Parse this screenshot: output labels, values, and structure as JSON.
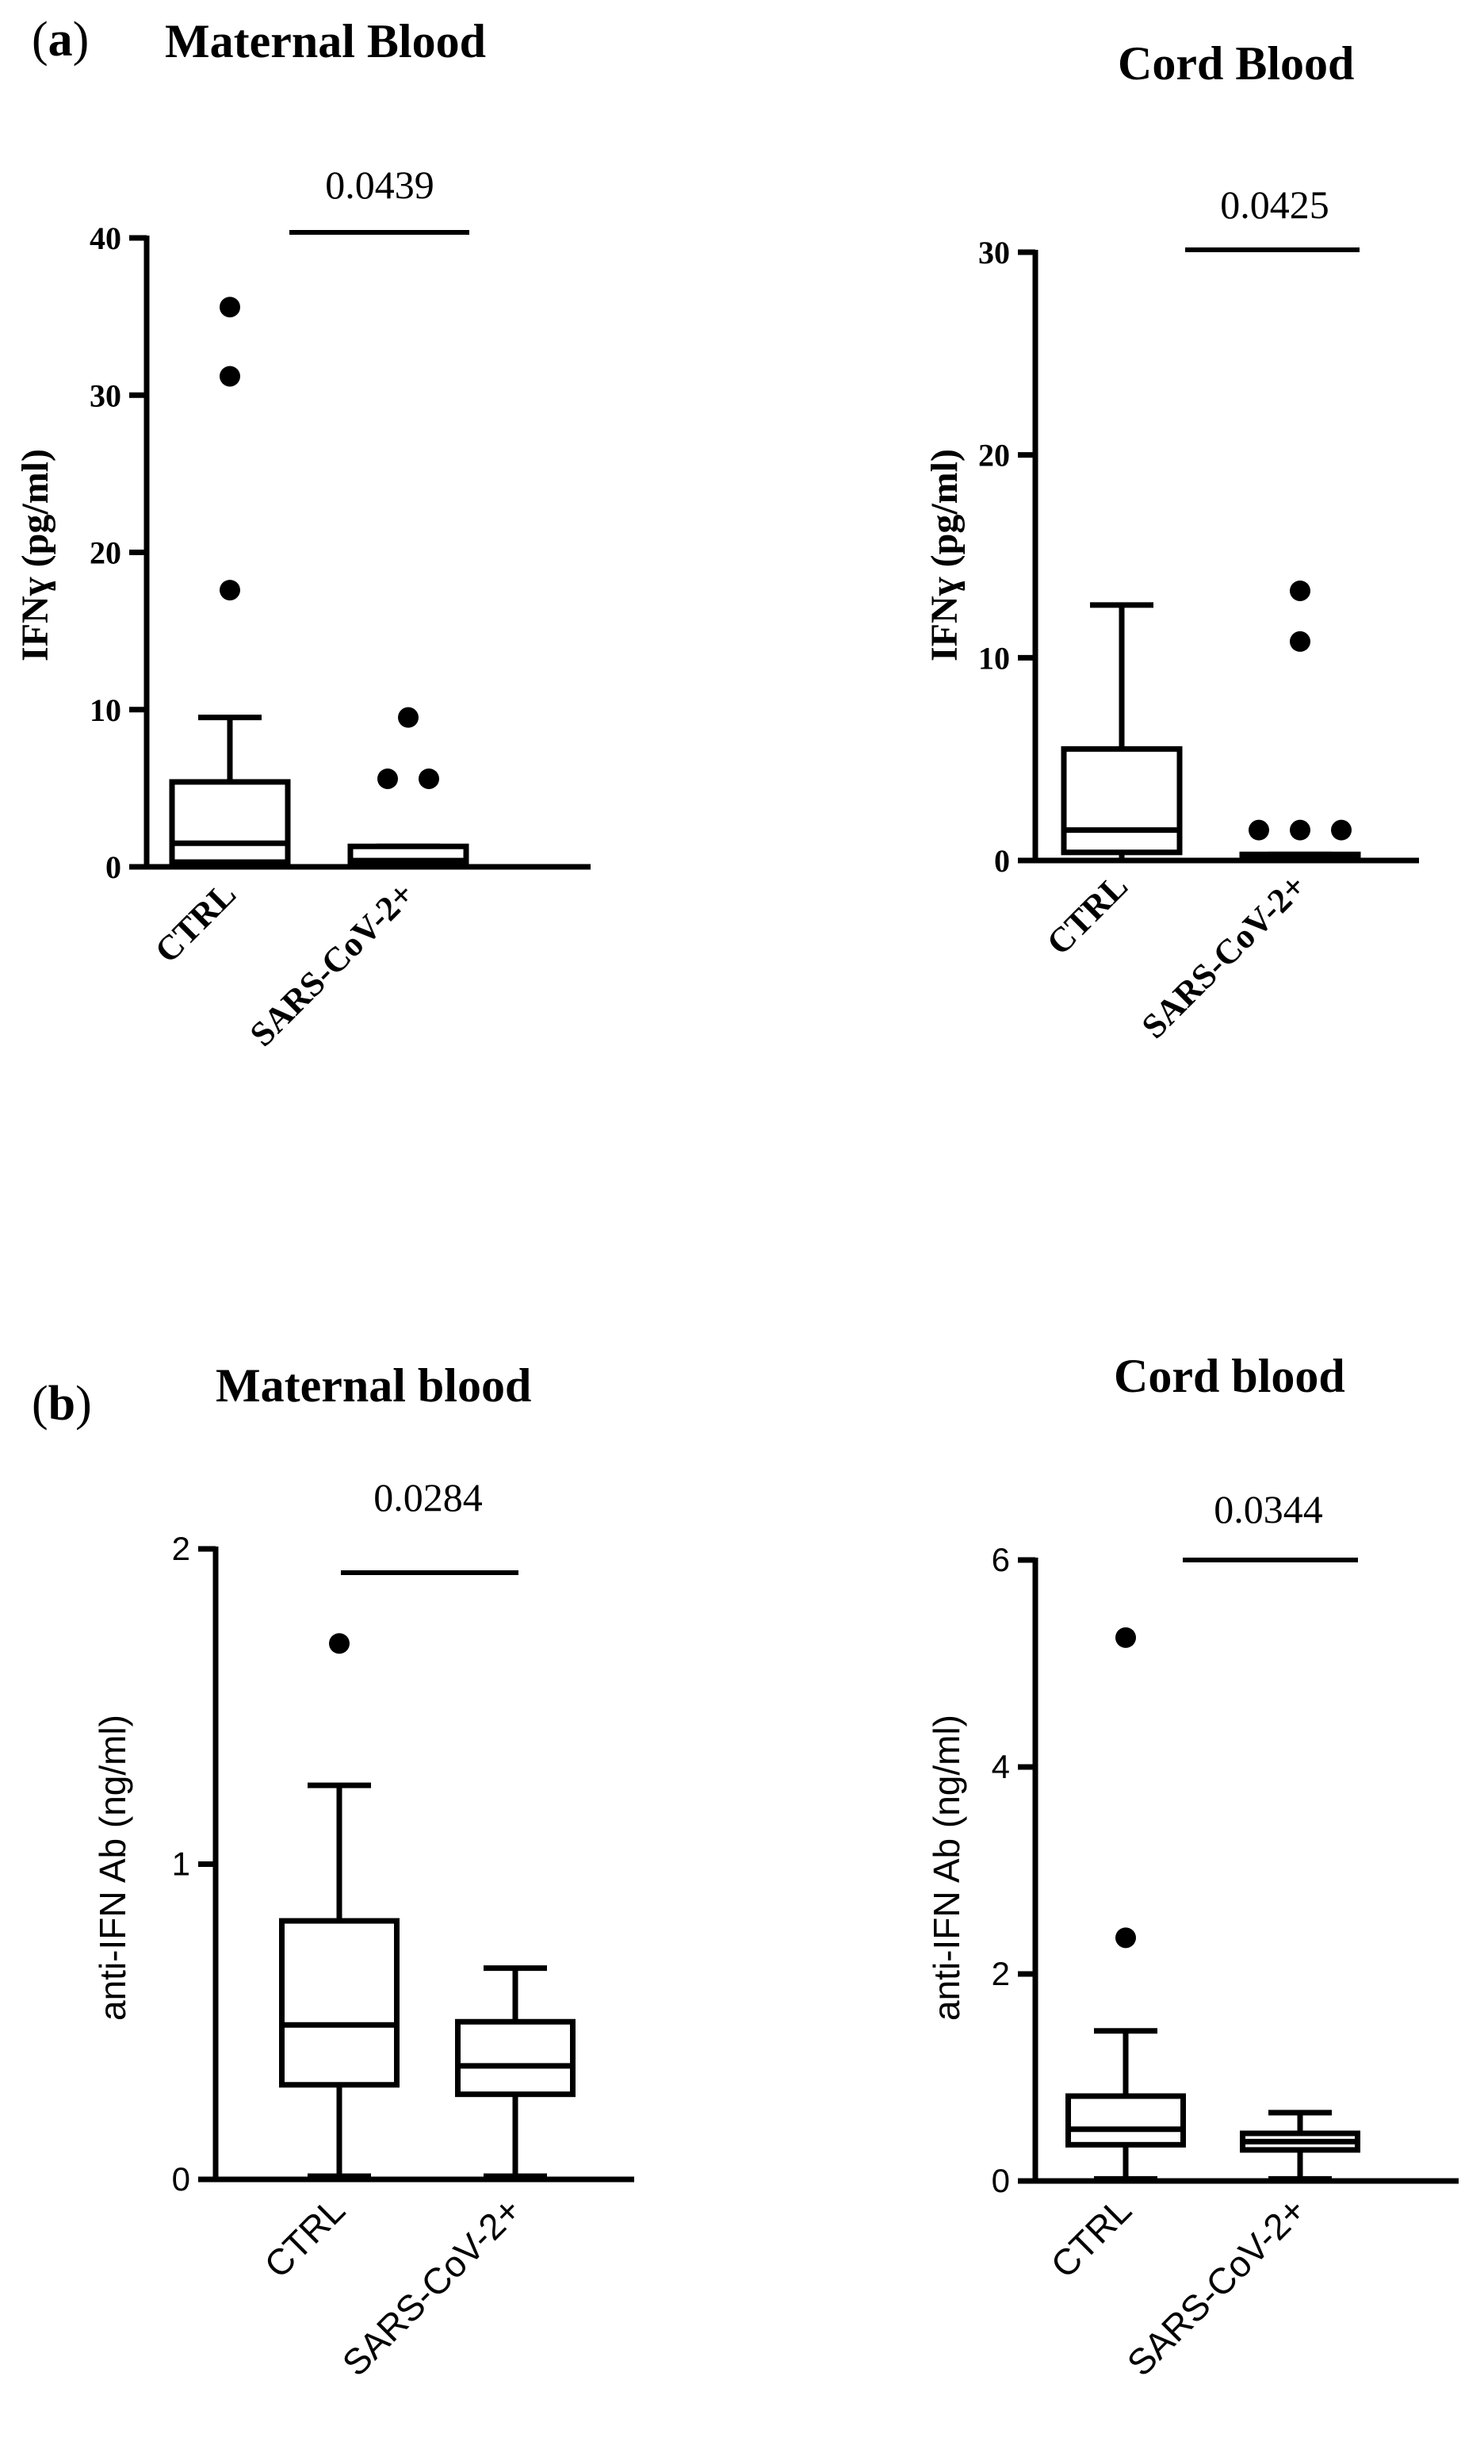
{
  "figure": {
    "panel_a": {
      "letter_open": "(",
      "letter": "a",
      "letter_close": ")"
    },
    "panel_b": {
      "letter_open": "(",
      "letter": "b",
      "letter_close": ")"
    }
  },
  "chart_data": [
    {
      "type": "box",
      "panel": "a",
      "title": "Maternal Blood",
      "ylabel": "IFNɣ (pg/ml)",
      "ylim": [
        0,
        40
      ],
      "yticks": [
        0,
        10,
        20,
        30,
        40
      ],
      "categories": [
        "CTRL",
        "SARS-CoV-2+"
      ],
      "p_value": "0.0439",
      "boxes": [
        {
          "name": "CTRL",
          "whisker_low": 0,
          "q1": 0.3,
          "median": 1.5,
          "q3": 5.4,
          "whisker_high": 9.5,
          "outliers": [
            17.6,
            31.2,
            35.6
          ]
        },
        {
          "name": "SARS-CoV-2+",
          "whisker_low": 0,
          "q1": 0.1,
          "median": 0.4,
          "q3": 1.3,
          "whisker_high": 1.3,
          "outliers": [
            5.6,
            5.6,
            9.5
          ]
        }
      ]
    },
    {
      "type": "box",
      "panel": "a",
      "title": "Cord Blood",
      "ylabel": "IFNɣ (pg/ml)",
      "ylim": [
        0,
        30
      ],
      "yticks": [
        0,
        10,
        20,
        30
      ],
      "categories": [
        "CTRL",
        "SARS-CoV-2+"
      ],
      "p_value": "0.0425",
      "boxes": [
        {
          "name": "CTRL",
          "whisker_low": 0,
          "q1": 0.4,
          "median": 1.5,
          "q3": 5.5,
          "whisker_high": 12.6,
          "outliers": []
        },
        {
          "name": "SARS-CoV-2+",
          "whisker_low": 0,
          "q1": 0.1,
          "median": 0.2,
          "q3": 0.3,
          "whisker_high": 0.3,
          "outliers": [
            1.5,
            1.5,
            1.5,
            10.8,
            13.3
          ]
        }
      ]
    },
    {
      "type": "box",
      "panel": "b",
      "title": "Maternal blood",
      "ylabel": "anti-IFN Ab  (ng/ml)",
      "ylim": [
        0,
        2
      ],
      "yticks": [
        0,
        1,
        2
      ],
      "categories": [
        "CTRL",
        "SARS-CoV-2+"
      ],
      "p_value": "0.0284",
      "boxes": [
        {
          "name": "CTRL",
          "whisker_low": 0.01,
          "q1": 0.3,
          "median": 0.49,
          "q3": 0.82,
          "whisker_high": 1.25,
          "outliers": [
            1.7
          ]
        },
        {
          "name": "SARS-CoV-2+",
          "whisker_low": 0.01,
          "q1": 0.27,
          "median": 0.36,
          "q3": 0.5,
          "whisker_high": 0.67,
          "outliers": []
        }
      ]
    },
    {
      "type": "box",
      "panel": "b",
      "title": "Cord blood",
      "ylabel": "anti-IFN Ab  (ng/ml)",
      "ylim": [
        0,
        6
      ],
      "yticks": [
        0,
        2,
        4,
        6
      ],
      "categories": [
        "CTRL",
        "SARS-CoV-2+"
      ],
      "p_value": "0.0344",
      "boxes": [
        {
          "name": "CTRL",
          "whisker_low": 0.02,
          "q1": 0.35,
          "median": 0.5,
          "q3": 0.82,
          "whisker_high": 1.45,
          "outliers": [
            2.35,
            5.25
          ]
        },
        {
          "name": "SARS-CoV-2+",
          "whisker_low": 0.02,
          "q1": 0.3,
          "median": 0.38,
          "q3": 0.46,
          "whisker_high": 0.66,
          "outliers": []
        }
      ]
    }
  ]
}
